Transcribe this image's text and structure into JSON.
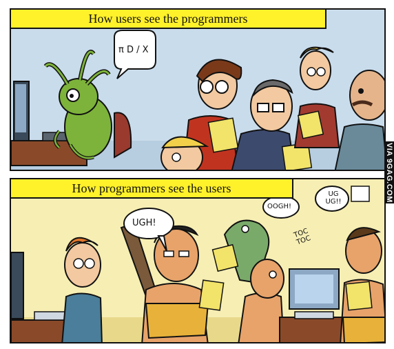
{
  "top_panel": {
    "caption": "How users see the programmers",
    "speech_bubble": "π D / X"
  },
  "bottom_panel": {
    "caption": "How programmers see the users",
    "speech_bubbles": {
      "left_caveman": "UGH!",
      "dino": "OOGH!",
      "toc": "TOC TOC",
      "right_caveman": "UG UG!!"
    }
  },
  "watermark": "VIA 9GAG.COM",
  "colors": {
    "caption_yellow": "#fff12a",
    "top_background": "#c9dcec",
    "bottom_background": "#f6eeb3",
    "alien_green": "#7db33a",
    "caveman_skin": "#e7a36a"
  }
}
